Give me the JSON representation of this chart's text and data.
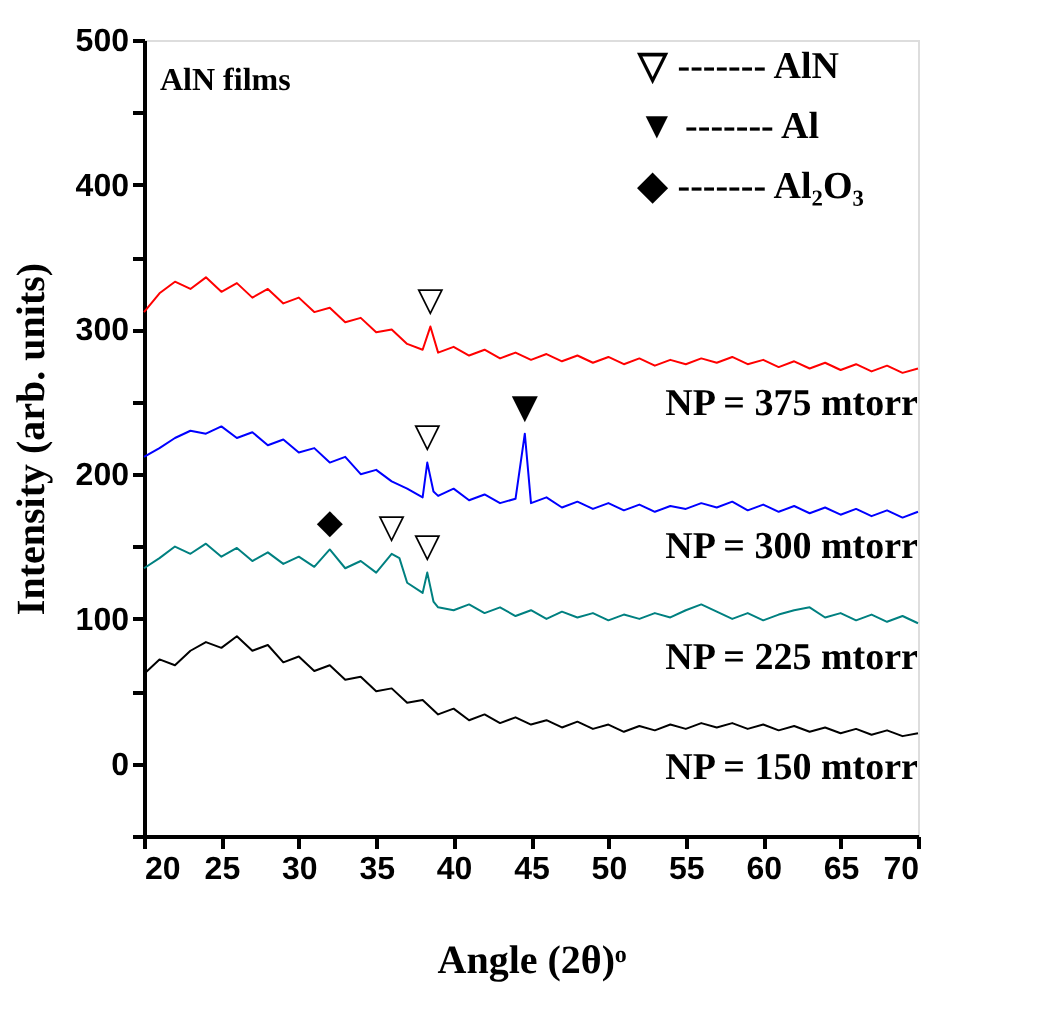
{
  "chart_data": {
    "type": "line",
    "xlabel": "Angle (2θ)ᵒ",
    "ylabel": "Intensity (arb. units)",
    "xlim": [
      20,
      70
    ],
    "xticks": [
      20,
      25,
      30,
      35,
      40,
      45,
      50,
      55,
      60,
      65,
      70
    ],
    "ylim": [
      -50,
      500
    ],
    "yticks": [
      {
        "value": -50,
        "label": null
      },
      0,
      {
        "value": 50,
        "label": null
      },
      100,
      {
        "value": 150,
        "label": null
      },
      200,
      {
        "value": 250,
        "label": null
      },
      300,
      {
        "value": 350,
        "label": null
      },
      400,
      {
        "value": 450,
        "label": null
      },
      500
    ],
    "grid": false,
    "marker": "none",
    "line_style": "solid",
    "series": [
      {
        "name": "NP = 375 mtorr",
        "color": "#ff0000",
        "x": [
          20,
          21,
          22,
          23,
          24,
          25,
          26,
          27,
          28,
          29,
          30,
          31,
          32,
          33,
          34,
          35,
          36,
          37,
          38,
          38.5,
          39,
          40,
          41,
          42,
          43,
          44,
          45,
          46,
          47,
          48,
          49,
          50,
          51,
          52,
          53,
          54,
          55,
          56,
          57,
          58,
          59,
          60,
          61,
          62,
          63,
          64,
          65,
          66,
          67,
          68,
          69,
          70
        ],
        "values": [
          312,
          325,
          333,
          328,
          336,
          326,
          332,
          322,
          328,
          318,
          322,
          312,
          315,
          305,
          308,
          298,
          300,
          290,
          286,
          302,
          284,
          288,
          282,
          286,
          280,
          284,
          279,
          283,
          278,
          282,
          277,
          281,
          276,
          280,
          275,
          279,
          276,
          280,
          277,
          281,
          276,
          279,
          274,
          278,
          273,
          277,
          272,
          276,
          271,
          275,
          270,
          273
        ]
      },
      {
        "name": "NP = 300 mtorr",
        "color": "#0000ff",
        "x": [
          20,
          21,
          22,
          23,
          24,
          25,
          26,
          27,
          28,
          29,
          30,
          31,
          32,
          33,
          34,
          35,
          36,
          37,
          38,
          38.3,
          38.7,
          39,
          40,
          41,
          42,
          43,
          44,
          44.6,
          45,
          46,
          47,
          48,
          49,
          50,
          51,
          52,
          53,
          54,
          55,
          56,
          57,
          58,
          59,
          60,
          61,
          62,
          63,
          64,
          65,
          66,
          67,
          68,
          69,
          70
        ],
        "values": [
          212,
          218,
          225,
          230,
          228,
          233,
          225,
          229,
          220,
          224,
          215,
          218,
          208,
          212,
          200,
          203,
          195,
          190,
          184,
          208,
          188,
          185,
          190,
          182,
          186,
          180,
          183,
          228,
          180,
          184,
          177,
          181,
          176,
          180,
          175,
          179,
          174,
          178,
          176,
          180,
          177,
          181,
          175,
          179,
          174,
          178,
          173,
          177,
          172,
          176,
          171,
          175,
          170,
          174
        ]
      },
      {
        "name": "NP = 225 mtorr",
        "color": "#008080",
        "x": [
          20,
          21,
          22,
          23,
          24,
          25,
          26,
          27,
          28,
          29,
          30,
          31,
          32,
          33,
          34,
          35,
          36,
          36.5,
          37,
          38,
          38.3,
          38.7,
          39,
          40,
          41,
          42,
          43,
          44,
          45,
          46,
          47,
          48,
          49,
          50,
          51,
          52,
          53,
          54,
          55,
          56,
          57,
          58,
          59,
          60,
          61,
          62,
          63,
          64,
          65,
          66,
          67,
          68,
          69,
          70
        ],
        "values": [
          135,
          142,
          150,
          145,
          152,
          143,
          149,
          140,
          146,
          138,
          143,
          136,
          148,
          135,
          140,
          132,
          145,
          142,
          125,
          118,
          132,
          112,
          108,
          106,
          110,
          104,
          108,
          102,
          106,
          100,
          105,
          101,
          104,
          99,
          103,
          100,
          104,
          101,
          106,
          110,
          105,
          100,
          104,
          99,
          103,
          106,
          108,
          101,
          104,
          99,
          103,
          98,
          102,
          97
        ]
      },
      {
        "name": "NP = 150 mtorr",
        "color": "#000000",
        "x": [
          20,
          21,
          22,
          23,
          24,
          25,
          26,
          27,
          28,
          29,
          30,
          31,
          32,
          33,
          34,
          35,
          36,
          37,
          38,
          39,
          40,
          41,
          42,
          43,
          44,
          45,
          46,
          47,
          48,
          49,
          50,
          51,
          52,
          53,
          54,
          55,
          56,
          57,
          58,
          59,
          60,
          61,
          62,
          63,
          64,
          65,
          66,
          67,
          68,
          69,
          70
        ],
        "values": [
          62,
          72,
          68,
          78,
          84,
          80,
          88,
          78,
          82,
          70,
          74,
          64,
          68,
          58,
          60,
          50,
          52,
          42,
          44,
          34,
          38,
          30,
          34,
          28,
          32,
          27,
          30,
          25,
          29,
          24,
          27,
          22,
          26,
          23,
          27,
          24,
          28,
          25,
          28,
          24,
          27,
          23,
          26,
          22,
          25,
          21,
          24,
          20,
          23,
          19,
          21
        ]
      }
    ],
    "annotations": [
      "AlN films",
      "▽ ------- AlN",
      "▼ ------- Al",
      "◆ ------- Al₂O₃",
      {
        "text": "▽",
        "x": 38.5,
        "y": 302
      },
      {
        "text": "▽",
        "x": 38.3,
        "y": 208
      },
      {
        "text": "▼",
        "x": 44.6,
        "y": 228
      },
      {
        "text": "◆",
        "x": 32,
        "y": 148
      },
      {
        "text": "▽",
        "x": 36,
        "y": 145
      },
      {
        "text": "▽",
        "x": 38.3,
        "y": 132
      }
    ]
  }
}
